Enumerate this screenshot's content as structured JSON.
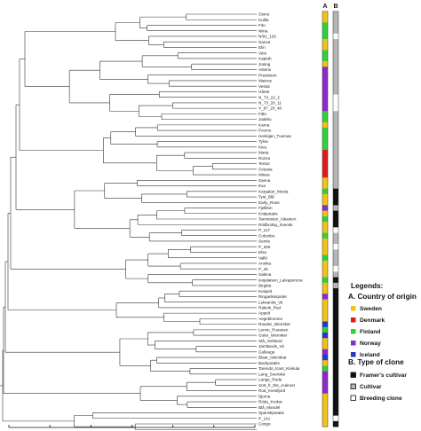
{
  "dendrogram": {
    "column_headers": [
      "A",
      "B"
    ],
    "axis_ticks": [
      "120",
      "100",
      "80",
      "60",
      "40",
      "20",
      "0"
    ],
    "leaves": [
      {
        "label": "Osmo",
        "country": "Sweden",
        "clone": "Cultivar"
      },
      {
        "label": "Kullta",
        "country": "Sweden",
        "clone": "Cultivar"
      },
      {
        "label": "Fito",
        "country": "Finland",
        "clone": "Cultivar"
      },
      {
        "label": "Niina",
        "country": "Finland",
        "clone": "Cultivar"
      },
      {
        "label": "N/91_102",
        "country": "Finland",
        "clone": "Breeding clone"
      },
      {
        "label": "Danva",
        "country": "Sweden",
        "clone": "Cultivar"
      },
      {
        "label": "Elin",
        "country": "Sweden",
        "clone": "Cultivar"
      },
      {
        "label": "Veto",
        "country": "Finland",
        "clone": "Cultivar"
      },
      {
        "label": "Kaptah",
        "country": "Finland",
        "clone": "Cultivar"
      },
      {
        "label": "Josing",
        "country": "Sweden",
        "clone": "Cultivar"
      },
      {
        "label": "Asterix",
        "country": "Norway",
        "clone": "Cultivar"
      },
      {
        "label": "Prestivem",
        "country": "Norway",
        "clone": "Cultivar"
      },
      {
        "label": "Mainus",
        "country": "Norway",
        "clone": "Cultivar"
      },
      {
        "label": "Vestar",
        "country": "Norway",
        "clone": "Cultivar"
      },
      {
        "label": "Hårek",
        "country": "Norway",
        "clone": "Cultivar"
      },
      {
        "label": "N_73_22_2",
        "country": "Norway",
        "clone": "Breeding clone"
      },
      {
        "label": "N_73_20_11",
        "country": "Norway",
        "clone": "Breeding clone"
      },
      {
        "label": "V_87_20_40",
        "country": "Norway",
        "clone": "Breeding clone"
      },
      {
        "label": "Fitto",
        "country": "Finland",
        "clone": "Cultivar"
      },
      {
        "label": "Jaakko",
        "country": "Finland",
        "clone": "Cultivar"
      },
      {
        "label": "Karna",
        "country": "Sweden",
        "clone": "Cultivar"
      },
      {
        "label": "Pcemo",
        "country": "Finland",
        "clone": "Cultivar"
      },
      {
        "label": "Henkijan_Tuomas",
        "country": "Finland",
        "clone": "Cultivar"
      },
      {
        "label": "Tylva",
        "country": "Finland",
        "clone": "Cultivar"
      },
      {
        "label": "Kiva",
        "country": "Finland",
        "clone": "Cultivar"
      },
      {
        "label": "Maria",
        "country": "Denmark",
        "clone": "Cultivar"
      },
      {
        "label": "Rozva",
        "country": "Denmark",
        "clone": "Cultivar"
      },
      {
        "label": "Tertus",
        "country": "Denmark",
        "clone": "Cultivar"
      },
      {
        "label": "Octavia",
        "country": "Denmark",
        "clone": "Cultivar"
      },
      {
        "label": "Minea",
        "country": "Denmark",
        "clone": "Cultivar"
      },
      {
        "label": "Sanna",
        "country": "Sweden",
        "clone": "Cultivar"
      },
      {
        "label": "Eva",
        "country": "Sweden",
        "clone": "Cultivar"
      },
      {
        "label": "Kargalan_Musta",
        "country": "Finland",
        "clone": "Framer's cultivar"
      },
      {
        "label": "Tyst_Blå",
        "country": "Sweden",
        "clone": "Framer's cultivar"
      },
      {
        "label": "Early_Rose",
        "country": "Sweden",
        "clone": "Framer's cultivar"
      },
      {
        "label": "Fjelllinn",
        "country": "Norway",
        "clone": "Cultivar"
      },
      {
        "label": "Kottpotatis",
        "country": "Sweden",
        "clone": "Framer's cultivar"
      },
      {
        "label": "Tammiston_Aikainen",
        "country": "Finland",
        "clone": "Framer's cultivar"
      },
      {
        "label": "Rödbrokig_Svensk",
        "country": "Sweden",
        "clone": "Framer's cultivar"
      },
      {
        "label": "P_117",
        "country": "Sweden",
        "clone": "Breeding clone"
      },
      {
        "label": "Columbo",
        "country": "Finland",
        "clone": "Cultivar"
      },
      {
        "label": "Semlo",
        "country": "Sweden",
        "clone": "Cultivar"
      },
      {
        "label": "P_325",
        "country": "Sweden",
        "clone": "Breeding clone"
      },
      {
        "label": "Elsa",
        "country": "Sweden",
        "clone": "Cultivar"
      },
      {
        "label": "Vallti",
        "country": "Finland",
        "clone": "Cultivar"
      },
      {
        "label": "Annika",
        "country": "Sweden",
        "clone": "Cultivar"
      },
      {
        "label": "P_40",
        "country": "Sweden",
        "clone": "Breeding clone"
      },
      {
        "label": "Sabina",
        "country": "Sweden",
        "clone": "Cultivar"
      },
      {
        "label": "Isojalaisen_Laivaperuna",
        "country": "Finland",
        "clone": "Framer's cultivar"
      },
      {
        "label": "Birgitta",
        "country": "Sweden",
        "clone": "Cultivar"
      },
      {
        "label": "Kosjarit",
        "country": "Sweden",
        "clone": "Framer's cultivar"
      },
      {
        "label": "Ringariksspotet",
        "country": "Norway",
        "clone": "Framer's cultivar"
      },
      {
        "label": "Leksands_Vit",
        "country": "Sweden",
        "clone": "Framer's cultivar"
      },
      {
        "label": "Rättvik_Rod",
        "country": "Sweden",
        "clone": "Framer's cultivar"
      },
      {
        "label": "Appelt",
        "country": "Sweden",
        "clone": "Framer's cultivar"
      },
      {
        "label": "Aegeblomme",
        "country": "Sweden",
        "clone": "Framer's cultivar"
      },
      {
        "label": "Raudar_Islenskar",
        "country": "Iceland",
        "clone": "Framer's cultivar"
      },
      {
        "label": "Lemin_Punanen",
        "country": "Finland",
        "clone": "Framer's cultivar"
      },
      {
        "label": "Gular_Islenskar",
        "country": "Iceland",
        "clone": "Framer's cultivar"
      },
      {
        "label": "Stå_Oxbland",
        "country": "Sweden",
        "clone": "Framer's cultivar"
      },
      {
        "label": "Jämtlands_Vit",
        "country": "Sweden",
        "clone": "Framer's cultivar"
      },
      {
        "label": "Gullauge",
        "country": "Norway",
        "clone": "Framer's cultivar"
      },
      {
        "label": "Blaar_Islenskar",
        "country": "Iceland",
        "clone": "Framer's cultivar"
      },
      {
        "label": "Backpotatis",
        "country": "Sweden",
        "clone": "Framer's cultivar"
      },
      {
        "label": "Tarendo_Kant_Kiekula",
        "country": "Finland",
        "clone": "Framer's cultivar"
      },
      {
        "label": "Lang_Svenske",
        "country": "Norway",
        "clone": "Framer's cultivar"
      },
      {
        "label": "Lange_Rode",
        "country": "Norway",
        "clone": "Framer's cultivar"
      },
      {
        "label": "Sort_fr_the_Aukrust",
        "country": "Norway",
        "clone": "Framer's cultivar"
      },
      {
        "label": "Rod_Kvesfjord",
        "country": "Norway",
        "clone": "Framer's cultivar"
      },
      {
        "label": "Bjorna",
        "country": "Sweden",
        "clone": "Framer's cultivar"
      },
      {
        "label": "Röda_Krokar",
        "country": "Sweden",
        "clone": "Framer's cultivar"
      },
      {
        "label": "Blå_Mandel",
        "country": "Sweden",
        "clone": "Framer's cultivar"
      },
      {
        "label": "Spanskpotatis",
        "country": "Sweden",
        "clone": "Framer's cultivar"
      },
      {
        "label": "P_141",
        "country": "Sweden",
        "clone": "Breeding clone"
      },
      {
        "label": "Congo",
        "country": "Sweden",
        "clone": "Framer's cultivar"
      }
    ]
  },
  "legend": {
    "title": "Legends:",
    "section_a_title": "A. Country of origin",
    "countries": [
      {
        "label": "Sweden",
        "color": "#f2c218"
      },
      {
        "label": "Denmark",
        "color": "#e01a1a"
      },
      {
        "label": "Finland",
        "color": "#2fd23a"
      },
      {
        "label": "Norway",
        "color": "#8a2bc9"
      },
      {
        "label": "Iceland",
        "color": "#2838c8"
      }
    ],
    "section_b_title": "B. Type of clone",
    "clone_types": [
      {
        "label": "Framer's cultivar",
        "color": "#111111"
      },
      {
        "label": "Cultivar",
        "color": "#b5b5b5"
      },
      {
        "label": "Breeding clone",
        "color": "#ffffff"
      }
    ]
  }
}
